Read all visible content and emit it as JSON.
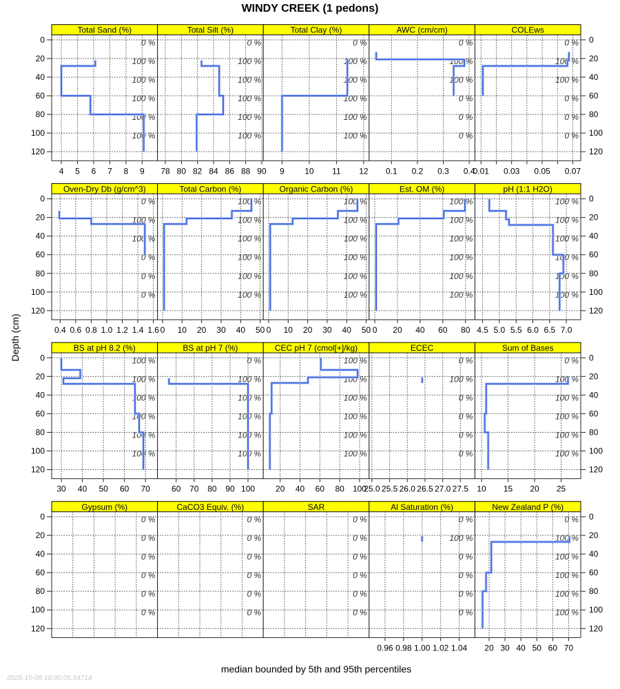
{
  "title": "WINDY CREEK (1 pedons)",
  "ylabel": "Depth (cm)",
  "xlabel": "median bounded by 5th and 95th percentiles",
  "timestamp": "2025-10-08 18:00:05.54714",
  "colors": {
    "line": "#4169E1",
    "band": "#C9D5F6",
    "strip": "#FFFF00"
  },
  "chart_data": {
    "type": "line",
    "title": "WINDY CREEK (1 pedons)",
    "ylabel": "Depth (cm)",
    "xlabel": "median bounded by 5th and 95th percentiles",
    "ylim": [
      -5.3,
      129.7
    ],
    "yticks": [
      0,
      20,
      40,
      60,
      80,
      100,
      120
    ],
    "pct_depths": [
      0,
      20,
      40,
      60,
      80,
      100
    ],
    "grid": true,
    "panels": [
      {
        "title": "Total Sand (%)",
        "xlim": [
          3.4,
          9.95
        ],
        "ticks": [
          4,
          5,
          6,
          7,
          8,
          9
        ],
        "tick_labels": [
          "4",
          "5",
          "6",
          "7",
          "8",
          "9"
        ],
        "horizons": [
          [
            22,
            28,
            6.1
          ],
          [
            28,
            60,
            4.0
          ],
          [
            60,
            80,
            5.8
          ],
          [
            80,
            120,
            9.1
          ]
        ],
        "pct_labels": [
          "0 %",
          "100 %",
          "100 %",
          "100 %",
          "100 %",
          "100 %"
        ]
      },
      {
        "title": "Total Silt (%)",
        "xlim": [
          77.02,
          90.19
        ],
        "ticks": [
          78,
          80,
          82,
          84,
          86,
          88,
          90
        ],
        "tick_labels": [
          "78",
          "80",
          "82",
          "84",
          "86",
          "88",
          "90"
        ],
        "horizons": [
          [
            22,
            28,
            82.5
          ],
          [
            28,
            60,
            84.7
          ],
          [
            60,
            80,
            85.2
          ],
          [
            80,
            120,
            81.9
          ]
        ],
        "pct_labels": [
          "0 %",
          "100 %",
          "100 %",
          "100 %",
          "100 %",
          "100 %"
        ]
      },
      {
        "title": "Total Clay (%)",
        "xlim": [
          8.31,
          12.2
        ],
        "ticks": [
          9,
          10,
          11,
          12
        ],
        "tick_labels": [
          "9",
          "10",
          "11",
          "12"
        ],
        "horizons": [
          [
            21,
            60,
            11.4
          ],
          [
            60,
            120,
            9.0
          ]
        ],
        "pct_labels": [
          "0 %",
          "100 %",
          "100 %",
          "100 %",
          "100 %",
          "100 %"
        ]
      },
      {
        "title": "AWC (cm/cm)",
        "xlim": [
          0.0135,
          0.422
        ],
        "ticks": [
          0.1,
          0.2,
          0.3,
          0.4
        ],
        "tick_labels": [
          "0.1",
          "0.2",
          "0.3",
          "0.4"
        ],
        "horizons": [
          [
            13,
            21,
            0.041
          ],
          [
            21,
            28,
            0.381
          ],
          [
            28,
            60,
            0.34
          ]
        ],
        "pct_labels": [
          "0 %",
          "100 %",
          "100 %",
          "0 %",
          "0 %",
          "0 %"
        ]
      },
      {
        "title": "COLEws",
        "xlim": [
          0.006,
          0.0752
        ],
        "ticks": [
          0.01,
          0.02,
          0.03,
          0.04,
          0.05,
          0.06,
          0.07
        ],
        "tick_labels": [
          "0.01",
          "",
          "0.03",
          "",
          "0.05",
          "",
          "0.07"
        ],
        "horizons": [
          [
            13,
            22,
            0.0675
          ],
          [
            22,
            28,
            0.0665
          ],
          [
            28,
            60,
            0.0112
          ]
        ],
        "pct_labels": [
          "0 %",
          "100 %",
          "100 %",
          "0 %",
          "0 %",
          "0 %"
        ]
      },
      {
        "title": "Oven-Dry Db (g/cm^3)",
        "xlim": [
          0.291,
          1.653
        ],
        "ticks": [
          0.4,
          0.6,
          0.8,
          1.0,
          1.2,
          1.4,
          1.6
        ],
        "tick_labels": [
          "0.4",
          "0.6",
          "0.8",
          "1.0",
          "1.2",
          "1.4",
          "1.6"
        ],
        "horizons": [
          [
            13,
            21,
            0.39
          ],
          [
            21,
            27,
            0.8
          ],
          [
            27,
            60,
            1.49
          ]
        ],
        "pct_labels": [
          "0 %",
          "100 %",
          "100 %",
          "0 %",
          "0 %",
          "0 %"
        ]
      },
      {
        "title": "Total Carbon (%)",
        "xlim": [
          -2.6,
          51.6
        ],
        "ticks": [
          0,
          10,
          20,
          30,
          40,
          50
        ],
        "tick_labels": [
          "0",
          "10",
          "20",
          "30",
          "40",
          "50"
        ],
        "horizons": [
          [
            0,
            13,
            45.5
          ],
          [
            13,
            21,
            35.5
          ],
          [
            21,
            27,
            12.3
          ],
          [
            27,
            120,
            0.8
          ]
        ],
        "pct_labels": [
          "100 %",
          "100 %",
          "100 %",
          "100 %",
          "100 %",
          "100 %"
        ]
      },
      {
        "title": "Organic Carbon (%)",
        "xlim": [
          -2.75,
          51.5
        ],
        "ticks": [
          0,
          10,
          20,
          30,
          40,
          50
        ],
        "tick_labels": [
          "0",
          "10",
          "20",
          "30",
          "40",
          "50"
        ],
        "horizons": [
          [
            0,
            13,
            45.5
          ],
          [
            13,
            21,
            35.5
          ],
          [
            21,
            27,
            12.3
          ],
          [
            27,
            120,
            0.8
          ]
        ],
        "pct_labels": [
          "100 %",
          "100 %",
          "100 %",
          "100 %",
          "100 %",
          "100 %"
        ]
      },
      {
        "title": "Est. OM (%)",
        "xlim": [
          -5,
          88.3
        ],
        "ticks": [
          0,
          20,
          40,
          60,
          80
        ],
        "tick_labels": [
          "0",
          "20",
          "40",
          "60",
          "80"
        ],
        "horizons": [
          [
            0,
            13,
            79.5
          ],
          [
            13,
            21,
            60.8
          ],
          [
            21,
            27,
            20.9
          ],
          [
            27,
            120,
            1.2
          ]
        ],
        "pct_labels": [
          "100 %",
          "100 %",
          "100 %",
          "100 %",
          "100 %",
          "100 %"
        ]
      },
      {
        "title": "pH (1:1 H2O)",
        "xlim": [
          4.27,
          7.43
        ],
        "ticks": [
          4.5,
          5.0,
          5.5,
          6.0,
          6.5,
          7.0
        ],
        "tick_labels": [
          "4.5",
          "5.0",
          "5.5",
          "6.0",
          "6.5",
          "7.0"
        ],
        "horizons": [
          [
            0,
            13,
            4.7
          ],
          [
            13,
            22,
            5.2
          ],
          [
            22,
            28,
            5.29
          ],
          [
            28,
            60,
            6.6
          ],
          [
            60,
            80,
            6.91
          ],
          [
            80,
            120,
            6.8
          ]
        ],
        "pct_labels": [
          "100 %",
          "100 %",
          "100 %",
          "100 %",
          "100 %",
          "100 %"
        ]
      },
      {
        "title": "BS at pH 8.2 (%)",
        "xlim": [
          25.4,
          75.7
        ],
        "ticks": [
          30,
          40,
          50,
          60,
          70
        ],
        "tick_labels": [
          "30",
          "40",
          "50",
          "60",
          "70"
        ],
        "horizons": [
          [
            0,
            13,
            30
          ],
          [
            13,
            22,
            39
          ],
          [
            22,
            28,
            31
          ],
          [
            28,
            60,
            65
          ],
          [
            60,
            80,
            67
          ],
          [
            80,
            120,
            69
          ]
        ],
        "pct_labels": [
          "100 %",
          "100 %",
          "100 %",
          "100 %",
          "100 %",
          "100 %"
        ]
      },
      {
        "title": "BS at pH 7 (%)",
        "xlim": [
          49.6,
          108.5
        ],
        "ticks": [
          60,
          70,
          80,
          90,
          100
        ],
        "tick_labels": [
          "60",
          "70",
          "80",
          "90",
          "100"
        ],
        "horizons": [
          [
            22,
            28,
            56
          ],
          [
            28,
            120,
            100
          ]
        ],
        "pct_labels": [
          "0 %",
          "100 %",
          "100 %",
          "100 %",
          "100 %",
          "100 %"
        ]
      },
      {
        "title": "CEC pH 7 (cmol[+]/kg)",
        "xlim": [
          3,
          109.6
        ],
        "ticks": [
          20,
          40,
          60,
          80,
          100
        ],
        "tick_labels": [
          "20",
          "40",
          "60",
          "80",
          "100"
        ],
        "horizons": [
          [
            0,
            13,
            61
          ],
          [
            13,
            21,
            98
          ],
          [
            21,
            27,
            48
          ],
          [
            27,
            60,
            11.4
          ],
          [
            60,
            120,
            9.6
          ]
        ],
        "pct_labels": [
          "100 %",
          "100 %",
          "100 %",
          "100 %",
          "100 %",
          "100 %"
        ]
      },
      {
        "title": "ECEC",
        "xlim": [
          24.92,
          27.91
        ],
        "ticks": [
          25.0,
          25.5,
          26.0,
          26.5,
          27.0,
          27.5
        ],
        "tick_labels": [
          "25.0",
          "25.5",
          "26.0",
          "26.5",
          "27.0",
          "27.5"
        ],
        "horizons": [
          [
            21,
            27,
            26.42
          ]
        ],
        "pct_labels": [
          "0 %",
          "100 %",
          "0 %",
          "0 %",
          "0 %",
          "0 %"
        ]
      },
      {
        "title": "Sum of Bases",
        "xlim": [
          8.75,
          28.7
        ],
        "ticks": [
          10,
          15,
          20,
          25
        ],
        "tick_labels": [
          "10",
          "15",
          "20",
          "25"
        ],
        "horizons": [
          [
            21,
            28,
            26.3
          ],
          [
            28,
            60,
            10.87
          ],
          [
            60,
            80,
            10.6
          ],
          [
            80,
            120,
            11.25
          ]
        ],
        "pct_labels": [
          "0 %",
          "100 %",
          "100 %",
          "100 %",
          "100 %",
          "100 %"
        ]
      },
      {
        "title": "Gypsum (%)",
        "xlim": [
          0,
          1
        ],
        "ticks": [
          0.2,
          0.4,
          0.6,
          0.8
        ],
        "tick_labels": [],
        "horizons": [],
        "pct_labels": [
          "0 %",
          "0 %",
          "0 %",
          "0 %",
          "0 %",
          "0 %"
        ]
      },
      {
        "title": "CaCO3 Equiv. (%)",
        "xlim": [
          0,
          1
        ],
        "ticks": [
          0.2,
          0.4,
          0.6,
          0.8
        ],
        "tick_labels": [],
        "horizons": [],
        "pct_labels": [
          "0 %",
          "0 %",
          "0 %",
          "0 %",
          "0 %",
          "0 %"
        ]
      },
      {
        "title": "SAR",
        "xlim": [
          0,
          1
        ],
        "ticks": [
          0.2,
          0.4,
          0.6,
          0.8
        ],
        "tick_labels": [],
        "horizons": [],
        "pct_labels": [
          "0 %",
          "0 %",
          "0 %",
          "0 %",
          "0 %",
          "0 %"
        ]
      },
      {
        "title": "Al Saturation (%)",
        "xlim": [
          0.9428,
          1.057
        ],
        "ticks": [
          0.96,
          0.98,
          1.0,
          1.02,
          1.04
        ],
        "tick_labels": [
          "0.96",
          "0.98",
          "1.00",
          "1.02",
          "1.04"
        ],
        "horizons": [
          [
            21,
            27,
            1.0
          ]
        ],
        "pct_labels": [
          "0 %",
          "100 %",
          "0 %",
          "0 %",
          "0 %",
          "0 %"
        ]
      },
      {
        "title": "New Zealand P (%)",
        "xlim": [
          11.1,
          77.6
        ],
        "ticks": [
          20,
          30,
          40,
          50,
          60,
          70
        ],
        "tick_labels": [
          "20",
          "30",
          "40",
          "50",
          "60",
          "70"
        ],
        "horizons": [
          [
            21,
            27,
            70.5
          ],
          [
            27,
            60,
            21.4
          ],
          [
            60,
            80,
            18.1
          ],
          [
            80,
            120,
            15.9
          ]
        ],
        "pct_labels": [
          "0 %",
          "100 %",
          "100 %",
          "100 %",
          "100 %",
          "100 %"
        ]
      }
    ]
  }
}
